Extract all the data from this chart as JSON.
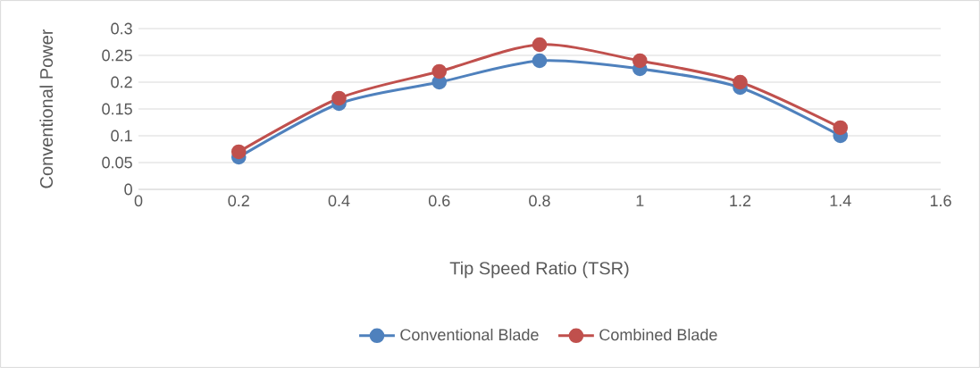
{
  "chart_data": {
    "type": "line",
    "xlabel": "Tip Speed Ratio (TSR)",
    "ylabel": "Conventional Power",
    "x": [
      0.2,
      0.4,
      0.6,
      0.8,
      1,
      1.2,
      1.4
    ],
    "series": [
      {
        "name": "Conventional Blade",
        "color": "#4f81bd",
        "values": [
          0.06,
          0.16,
          0.2,
          0.24,
          0.225,
          0.19,
          0.1
        ]
      },
      {
        "name": "Combined Blade",
        "color": "#c0504d",
        "values": [
          0.07,
          0.17,
          0.22,
          0.27,
          0.24,
          0.2,
          0.115
        ]
      }
    ],
    "xlim": [
      0,
      1.6
    ],
    "xticks": [
      0,
      0.2,
      0.4,
      0.6,
      0.8,
      1,
      1.2,
      1.4,
      1.6
    ],
    "ylim": [
      0,
      0.3
    ],
    "yticks": [
      0,
      0.05,
      0.1,
      0.15,
      0.2,
      0.25,
      0.3
    ],
    "grid": "y",
    "legend": "bottom",
    "marker": "circle",
    "line_style": "solid"
  }
}
